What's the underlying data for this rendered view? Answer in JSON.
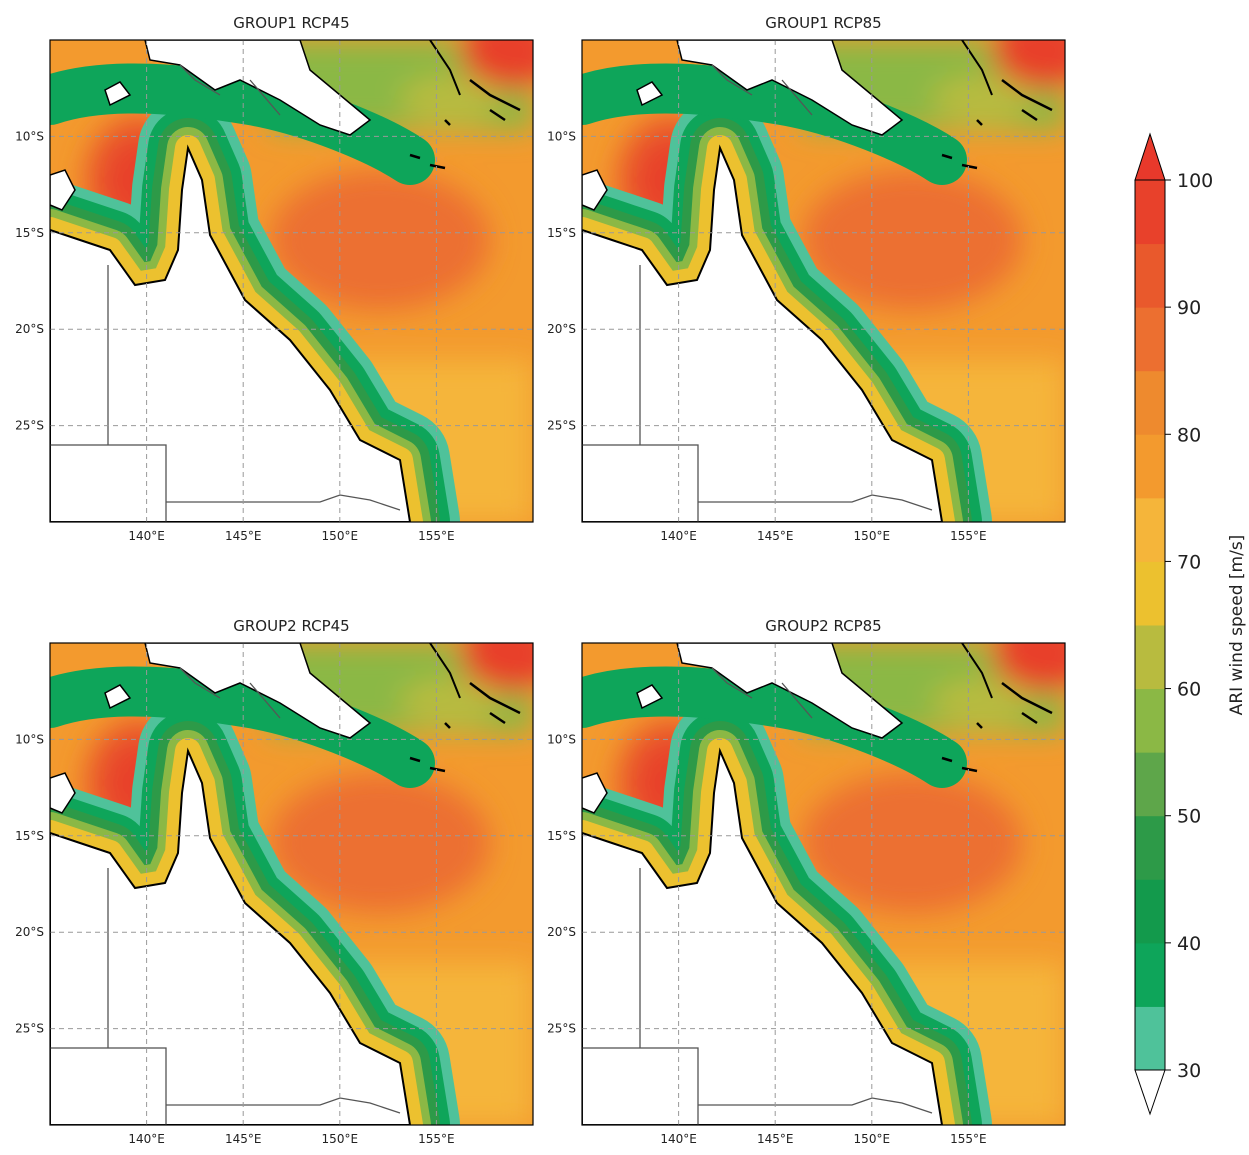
{
  "panels": [
    {
      "title": "GROUP1 RCP45"
    },
    {
      "title": "GROUP1 RCP85"
    },
    {
      "title": "GROUP2 RCP45"
    },
    {
      "title": "GROUP2 RCP85"
    }
  ],
  "lon_range": [
    135,
    160
  ],
  "lat_range": [
    -30,
    -5
  ],
  "lon_ticks": [
    {
      "value": 140,
      "label": "140°E"
    },
    {
      "value": 145,
      "label": "145°E"
    },
    {
      "value": 150,
      "label": "150°E"
    },
    {
      "value": 155,
      "label": "155°E"
    }
  ],
  "lat_ticks": [
    {
      "value": -10,
      "label": "10°S"
    },
    {
      "value": -15,
      "label": "15°S"
    },
    {
      "value": -20,
      "label": "20°S"
    },
    {
      "value": -25,
      "label": "25°S"
    }
  ],
  "colorbar": {
    "label": "ARI wind speed [m/s]",
    "levels": [
      30,
      35,
      40,
      45,
      50,
      55,
      60,
      65,
      70,
      75,
      80,
      85,
      90,
      95,
      100
    ],
    "colors": [
      "#4fc29a",
      "#0ea55a",
      "#139a4c",
      "#2d9a48",
      "#5ea64a",
      "#8bb845",
      "#b8bb3f",
      "#ecc12f",
      "#f5b53a",
      "#f39a2e",
      "#ee8a2e",
      "#ec6f30",
      "#e9592c",
      "#e8412b"
    ],
    "over_color": "#e8392b",
    "under_color": "#ffffff",
    "ticks": [
      30,
      40,
      50,
      60,
      70,
      80,
      90,
      100
    ]
  }
}
